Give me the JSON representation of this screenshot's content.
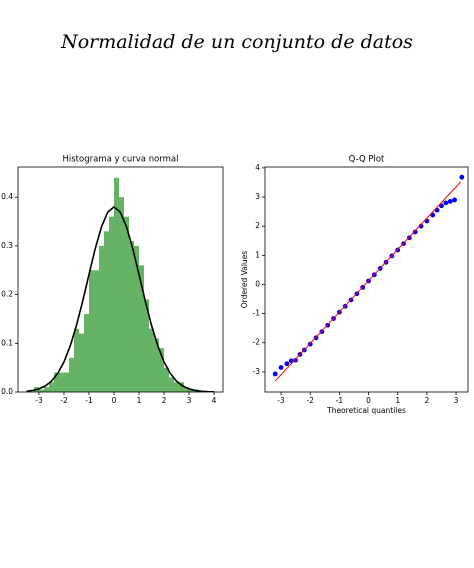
{
  "title": "Normalidad de un conjunto de datos",
  "chart_data": [
    {
      "type": "histogram",
      "title": "Histograma y curva normal",
      "color": "#66b366",
      "bins": [
        -3.2,
        -3.0,
        -2.8,
        -2.6,
        -2.4,
        -2.2,
        -2.0,
        -1.8,
        -1.6,
        -1.4,
        -1.2,
        -1.0,
        -0.8,
        -0.6,
        -0.4,
        -0.2,
        0.0,
        0.2,
        0.4,
        0.6,
        0.8,
        1.0,
        1.2,
        1.4,
        1.6,
        1.8,
        2.0,
        2.2,
        2.4,
        2.6,
        2.8,
        3.0,
        3.2,
        3.4
      ],
      "values": [
        0.01,
        0.005,
        0.01,
        0.02,
        0.04,
        0.04,
        0.04,
        0.07,
        0.13,
        0.12,
        0.16,
        0.25,
        0.25,
        0.3,
        0.33,
        0.36,
        0.44,
        0.4,
        0.36,
        0.31,
        0.3,
        0.26,
        0.19,
        0.13,
        0.11,
        0.09,
        0.05,
        0.03,
        0.02,
        0.02,
        0.01,
        0.005,
        0.005
      ],
      "curve": {
        "color": "#000000",
        "x": [
          -3.5,
          -3.25,
          -3.0,
          -2.75,
          -2.5,
          -2.25,
          -2.0,
          -1.75,
          -1.5,
          -1.25,
          -1.0,
          -0.75,
          -0.5,
          -0.25,
          0.0,
          0.25,
          0.5,
          0.75,
          1.0,
          1.25,
          1.5,
          1.75,
          2.0,
          2.25,
          2.5,
          2.75,
          3.0,
          3.25,
          3.5,
          3.75,
          4.0
        ],
        "y": [
          0.0015,
          0.0032,
          0.0064,
          0.0123,
          0.0223,
          0.0383,
          0.0619,
          0.0948,
          0.137,
          0.187,
          0.2415,
          0.2944,
          0.3393,
          0.3694,
          0.38,
          0.3694,
          0.3393,
          0.2944,
          0.2415,
          0.187,
          0.137,
          0.0948,
          0.0619,
          0.0383,
          0.0223,
          0.0123,
          0.0064,
          0.0032,
          0.0015,
          0.0007,
          0.0003
        ]
      },
      "xlim": [
        -3.84,
        4.36
      ],
      "ylim": [
        0,
        0.462
      ],
      "xticks": [
        -3,
        -2,
        -1,
        0,
        1,
        2,
        3,
        4
      ],
      "yticks": [
        {
          "value": 0,
          "label": "0.0"
        },
        {
          "value": 0.1,
          "label": "0.1"
        },
        {
          "value": 0.2,
          "label": "0.2"
        },
        {
          "value": 0.3,
          "label": "0.3"
        },
        {
          "value": 0.4,
          "label": "0.4"
        }
      ]
    },
    {
      "type": "scatter",
      "title": "Q-Q Plot",
      "xlabel": "Theoretical quantiles",
      "ylabel": "Ordered Values",
      "color": "#0000ff",
      "x": [
        -3.2,
        -3.0,
        -2.8,
        -2.65,
        -2.5,
        -2.35,
        -2.2,
        -2.0,
        -1.8,
        -1.6,
        -1.4,
        -1.2,
        -1.0,
        -0.8,
        -0.6,
        -0.4,
        -0.2,
        0.0,
        0.2,
        0.4,
        0.6,
        0.8,
        1.0,
        1.2,
        1.4,
        1.6,
        1.8,
        2.0,
        2.2,
        2.35,
        2.5,
        2.65,
        2.8,
        2.95,
        3.2
      ],
      "values": [
        -3.07,
        -2.85,
        -2.72,
        -2.62,
        -2.6,
        -2.4,
        -2.25,
        -2.05,
        -1.83,
        -1.62,
        -1.4,
        -1.17,
        -0.95,
        -0.75,
        -0.53,
        -0.32,
        -0.1,
        0.12,
        0.33,
        0.55,
        0.76,
        0.98,
        1.18,
        1.4,
        1.6,
        1.8,
        2.0,
        2.18,
        2.38,
        2.55,
        2.7,
        2.8,
        2.85,
        2.9,
        3.68
      ],
      "line": {
        "color": "#ff0000",
        "x": [
          -3.2,
          3.16
        ],
        "y": [
          -3.31,
          3.52
        ]
      },
      "xlim": [
        -3.55,
        3.41
      ],
      "ylim": [
        -3.69,
        4.03
      ],
      "xticks": [
        -3,
        -2,
        -1,
        0,
        1,
        2,
        3
      ],
      "yticks": [
        -3,
        -2,
        -1,
        0,
        1,
        2,
        3,
        4
      ]
    }
  ]
}
